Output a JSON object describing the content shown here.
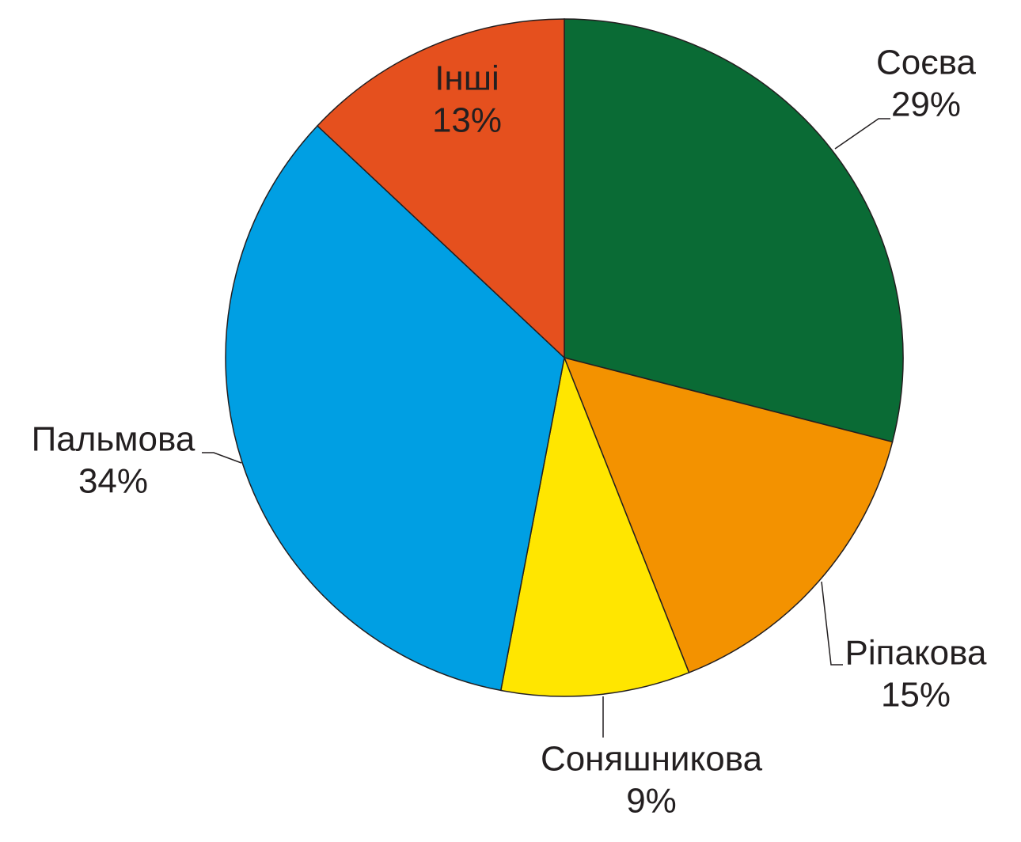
{
  "chart_data": {
    "type": "pie",
    "categories": [
      "Соєва",
      "Ріпакова",
      "Соняшникова",
      "Пальмова",
      "Інші"
    ],
    "values": [
      29,
      15,
      9,
      34,
      13
    ],
    "value_labels": [
      "29%",
      "15%",
      "9%",
      "34%",
      "13%"
    ],
    "colors": [
      "#0a6b35",
      "#f39200",
      "#ffe600",
      "#009fe3",
      "#e5501e"
    ]
  }
}
